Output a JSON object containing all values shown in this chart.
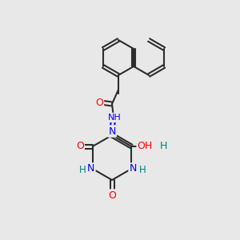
{
  "background_color": "#e8e8e8",
  "bond_color": "#2d2d2d",
  "atom_colors": {
    "C": "#2d2d2d",
    "N": "#0000ff",
    "O": "#ff0000",
    "H": "#008080"
  },
  "figsize": [
    3.0,
    3.0
  ],
  "dpi": 100
}
